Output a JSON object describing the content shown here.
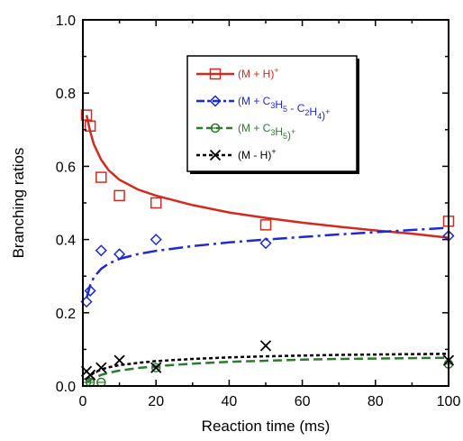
{
  "chart_data": {
    "type": "scatter",
    "xlabel": "Reaction time (ms)",
    "ylabel": "Branching ratios",
    "xlim": [
      0,
      100
    ],
    "ylim": [
      0,
      1.0
    ],
    "xticks": [
      0,
      20,
      40,
      60,
      80,
      100
    ],
    "yticks": [
      0.0,
      0.2,
      0.4,
      0.6,
      0.8,
      1.0
    ],
    "xtick_labels": [
      "0",
      "20",
      "40",
      "60",
      "80",
      "100"
    ],
    "ytick_labels": [
      "0.0",
      "0.2",
      "0.4",
      "0.6",
      "0.8",
      "1.0"
    ],
    "grid": false,
    "legend_position": "top-right",
    "series": [
      {
        "name": "(M + H)⁺",
        "color": "#d42a1e",
        "marker": "square",
        "line_style": "solid",
        "x": [
          1,
          2,
          5,
          10,
          20,
          50,
          100
        ],
        "y": [
          0.74,
          0.71,
          0.57,
          0.52,
          0.5,
          0.44,
          0.45
        ],
        "fit_x": [
          1,
          2,
          3,
          5,
          7,
          10,
          15,
          20,
          30,
          40,
          50,
          60,
          70,
          80,
          90,
          100
        ],
        "fit_y": [
          0.74,
          0.695,
          0.66,
          0.618,
          0.59,
          0.563,
          0.537,
          0.52,
          0.494,
          0.474,
          0.459,
          0.446,
          0.435,
          0.425,
          0.416,
          0.405
        ]
      },
      {
        "name": "(M + C3H5 - C2H4)⁺",
        "color": "#1c2ad6",
        "marker": "diamond",
        "line_style": "dashdot",
        "x": [
          1,
          2,
          5,
          10,
          20,
          50,
          100
        ],
        "y": [
          0.23,
          0.26,
          0.37,
          0.36,
          0.4,
          0.39,
          0.41
        ],
        "fit_x": [
          1,
          2,
          3,
          5,
          7,
          10,
          15,
          20,
          30,
          40,
          50,
          60,
          70,
          80,
          90,
          100
        ],
        "fit_y": [
          0.24,
          0.275,
          0.297,
          0.32,
          0.334,
          0.347,
          0.36,
          0.369,
          0.382,
          0.392,
          0.4,
          0.407,
          0.414,
          0.42,
          0.426,
          0.432
        ]
      },
      {
        "name": "(M + C3H5)⁺",
        "color": "#2c7a2c",
        "marker": "circle",
        "line_style": "dashed",
        "x": [
          1,
          2,
          5,
          20,
          100
        ],
        "y": [
          0.01,
          0.01,
          0.01,
          0.05,
          0.06
        ],
        "fit_x": [
          1,
          3,
          5,
          7,
          10,
          15,
          20,
          30,
          40,
          50,
          60,
          70,
          80,
          90,
          100
        ],
        "fit_y": [
          0.01,
          0.022,
          0.03,
          0.036,
          0.042,
          0.049,
          0.054,
          0.061,
          0.066,
          0.069,
          0.072,
          0.074,
          0.075,
          0.076,
          0.077
        ]
      },
      {
        "name": "(M - H)⁺",
        "color": "#000000",
        "marker": "x",
        "line_style": "dotted",
        "x": [
          1,
          2,
          5,
          10,
          20,
          50,
          100
        ],
        "y": [
          0.04,
          0.03,
          0.05,
          0.07,
          0.05,
          0.11,
          0.07
        ],
        "fit_x": [
          1,
          3,
          5,
          7,
          10,
          15,
          20,
          30,
          40,
          50,
          60,
          70,
          80,
          90,
          100
        ],
        "fit_y": [
          0.02,
          0.036,
          0.045,
          0.051,
          0.057,
          0.063,
          0.068,
          0.074,
          0.078,
          0.081,
          0.083,
          0.085,
          0.086,
          0.087,
          0.088
        ]
      }
    ],
    "legend": [
      {
        "parts": [
          [
            "(M + H)",
            ""
          ],
          [
            "+",
            "sup"
          ]
        ]
      },
      {
        "parts": [
          [
            "(M + C",
            ""
          ],
          [
            "3",
            "sub"
          ],
          [
            "H",
            ""
          ],
          [
            "5",
            "sub"
          ],
          [
            " - C",
            ""
          ],
          [
            "2",
            "sub"
          ],
          [
            "H",
            ""
          ],
          [
            "4",
            "sub"
          ],
          [
            ")",
            ""
          ],
          [
            "+",
            "sup"
          ]
        ]
      },
      {
        "parts": [
          [
            "(M + C",
            ""
          ],
          [
            "3",
            "sub"
          ],
          [
            "H",
            ""
          ],
          [
            "5",
            "sub"
          ],
          [
            ")",
            ""
          ],
          [
            "+",
            "sup"
          ]
        ]
      },
      {
        "parts": [
          [
            "(M - H)",
            ""
          ],
          [
            "+",
            "sup"
          ]
        ]
      }
    ]
  }
}
